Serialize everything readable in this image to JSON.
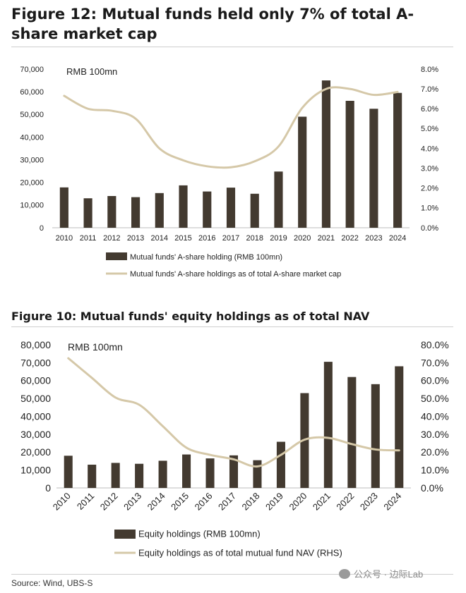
{
  "figure1": {
    "title": "Figure 12: Mutual funds held only 7% of total A-share market cap"
  },
  "figure2": {
    "title": "Figure 10: Mutual funds' equity holdings as of total NAV"
  },
  "source": "Source: Wind, UBS-S",
  "watermark": "公众号 · 边际Lab",
  "colors": {
    "bar": "#433a30",
    "line": "#d5c8a8",
    "text": "#1a1a1a"
  },
  "chart_data": [
    {
      "type": "bar",
      "unit_label": "RMB 100mn",
      "categories": [
        "2010",
        "2011",
        "2012",
        "2013",
        "2014",
        "2015",
        "2016",
        "2017",
        "2018",
        "2019",
        "2020",
        "2021",
        "2022",
        "2023",
        "2024"
      ],
      "series": [
        {
          "name": "Mutual funds' A-share holding (RMB 100mn)",
          "kind": "bar",
          "axis": "left",
          "values": [
            17800,
            13000,
            14000,
            13500,
            15300,
            18700,
            16000,
            17700,
            15000,
            24800,
            49000,
            65000,
            56000,
            52500,
            59500
          ]
        },
        {
          "name": "Mutual funds' A-share holdings as of total A-share market cap",
          "kind": "line",
          "axis": "right",
          "values": [
            6.65,
            6.0,
            5.9,
            5.5,
            4.0,
            3.4,
            3.1,
            3.05,
            3.35,
            4.1,
            6.05,
            7.0,
            7.0,
            6.7,
            6.85
          ]
        }
      ],
      "ylim_left": [
        0,
        70000
      ],
      "yticks_left": [
        "70,000",
        "60,000",
        "50,000",
        "40,000",
        "30,000",
        "20,000",
        "10,000",
        "0"
      ],
      "ylim_right": [
        0,
        8
      ],
      "yticks_right": [
        "8.0%",
        "7.0%",
        "6.0%",
        "5.0%",
        "4.0%",
        "3.0%",
        "2.0%",
        "1.0%",
        "0.0%"
      ],
      "legend": [
        "Mutual funds' A-share holding (RMB 100mn)",
        "Mutual funds' A-share holdings as of total A-share market cap"
      ]
    },
    {
      "type": "bar",
      "unit_label": "RMB 100mn",
      "categories": [
        "2010",
        "2011",
        "2012",
        "2013",
        "2014",
        "2015",
        "2016",
        "2017",
        "2018",
        "2019",
        "2020",
        "2021",
        "2022",
        "2023",
        "2024"
      ],
      "series": [
        {
          "name": "Equity holdings (RMB 100mn)",
          "kind": "bar",
          "axis": "left",
          "values": [
            18000,
            13000,
            14000,
            13500,
            15200,
            18700,
            16500,
            18200,
            15500,
            25800,
            53000,
            70500,
            62000,
            58000,
            68000
          ]
        },
        {
          "name": "Equity holdings as of total mutual fund NAV (RHS)",
          "kind": "line",
          "axis": "right",
          "values": [
            72.5,
            61.5,
            50.5,
            46.5,
            34.5,
            22.5,
            18.5,
            16.0,
            12.0,
            18.5,
            27.0,
            28.0,
            24.5,
            21.5,
            21.0
          ]
        }
      ],
      "ylim_left": [
        0,
        80000
      ],
      "yticks_left": [
        "80,000",
        "70,000",
        "60,000",
        "50,000",
        "40,000",
        "30,000",
        "20,000",
        "10,000",
        "0"
      ],
      "ylim_right": [
        0,
        80
      ],
      "yticks_right": [
        "80.0%",
        "70.0%",
        "60.0%",
        "50.0%",
        "40.0%",
        "30.0%",
        "20.0%",
        "10.0%",
        "0.0%"
      ],
      "legend": [
        "Equity holdings (RMB 100mn)",
        "Equity holdings as of total mutual fund NAV (RHS)"
      ]
    }
  ]
}
